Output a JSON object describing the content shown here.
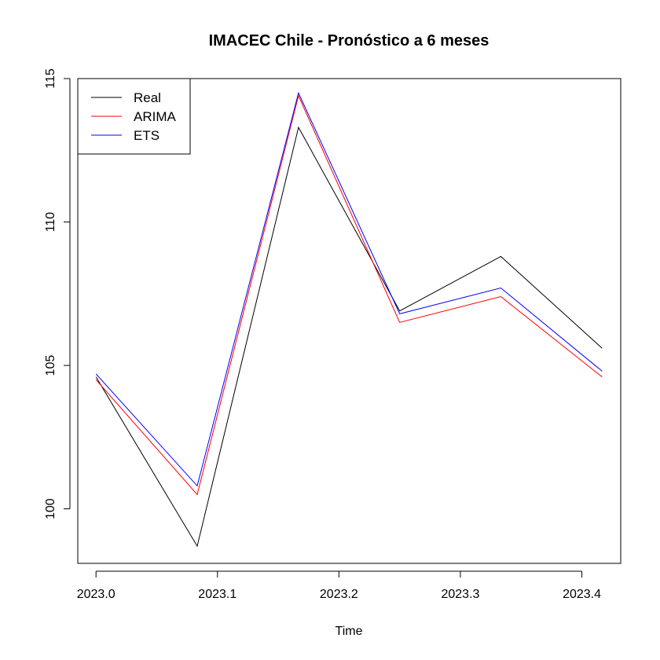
{
  "chart_data": {
    "type": "line",
    "title": "IMACEC Chile - Pronóstico a 6 meses",
    "xlabel": "Time",
    "ylabel": "",
    "x": [
      2023.0,
      2023.0833,
      2023.1667,
      2023.25,
      2023.3333,
      2023.4167
    ],
    "xlim": [
      2022.985,
      2023.432
    ],
    "ylim": [
      98.1,
      115.0
    ],
    "x_ticks": [
      2023.0,
      2023.1,
      2023.2,
      2023.3,
      2023.4
    ],
    "x_tick_labels": [
      "2023.0",
      "2023.1",
      "2023.2",
      "2023.3",
      "2023.4"
    ],
    "y_ticks": [
      100,
      105,
      110,
      115
    ],
    "y_tick_labels": [
      "100",
      "105",
      "110",
      "115"
    ],
    "grid": false,
    "legend_position": "top-left",
    "series": [
      {
        "name": "Real",
        "color": "#000000",
        "values": [
          104.6,
          98.7,
          113.3,
          106.9,
          108.8,
          105.6
        ]
      },
      {
        "name": "ARIMA",
        "color": "#ff0000",
        "values": [
          104.5,
          100.5,
          114.4,
          106.5,
          107.4,
          104.6
        ]
      },
      {
        "name": "ETS",
        "color": "#0000ff",
        "values": [
          104.7,
          100.8,
          114.5,
          106.8,
          107.7,
          104.8
        ]
      }
    ]
  }
}
